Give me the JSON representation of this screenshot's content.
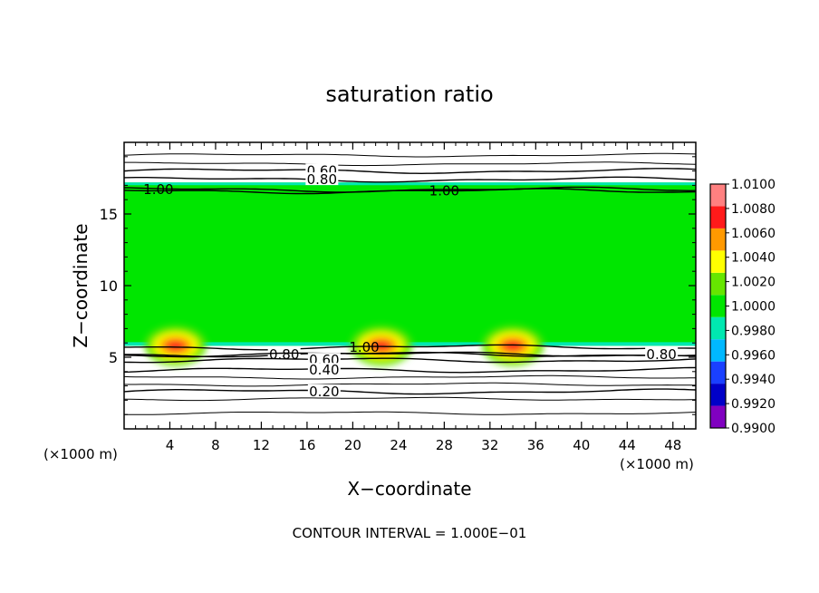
{
  "chart_data": {
    "type": "heatmap",
    "title": "saturation ratio",
    "xlabel": "X−coordinate",
    "ylabel": "Z−coordinate",
    "x_unit_left": "(×1000 m)",
    "x_unit_right": "(×1000 m)",
    "xlim": [
      0,
      50
    ],
    "ylim": [
      0,
      20
    ],
    "x_ticks": [
      "4",
      "8",
      "12",
      "16",
      "20",
      "24",
      "28",
      "32",
      "36",
      "40",
      "44",
      "48"
    ],
    "x_tick_values": [
      4,
      8,
      12,
      16,
      20,
      24,
      28,
      32,
      36,
      40,
      44,
      48
    ],
    "y_ticks": [
      "5",
      "10",
      "15"
    ],
    "y_tick_values": [
      5,
      10,
      15
    ],
    "footer": "CONTOUR INTERVAL = 1.000E−01",
    "colorbar": {
      "levels": [
        "0.9900",
        "0.9920",
        "0.9940",
        "0.9960",
        "0.9980",
        "1.0000",
        "1.0020",
        "1.0040",
        "1.0060",
        "1.0080",
        "1.0100"
      ],
      "colors": [
        "#8000c0",
        "#0000c8",
        "#1a40ff",
        "#00b8ff",
        "#00e8b0",
        "#00e600",
        "#66e600",
        "#ffff00",
        "#ff9900",
        "#ff1a1a",
        "#ff8080"
      ]
    },
    "field": {
      "zmin": 5.8,
      "zmax": 17.2,
      "background_value": 1.0005,
      "maxima_x_km": [
        4.5,
        22.5,
        34
      ],
      "maxima_value": 1.008
    },
    "contours": [
      {
        "label": "0.60",
        "z_km": 18.0,
        "label_x_km": 17.3
      },
      {
        "label": "0.80",
        "z_km": 17.4,
        "label_x_km": 17.3
      },
      {
        "label": "1.00",
        "z_km": 16.7,
        "label_x_km": 3.0
      },
      {
        "label": "1.00",
        "z_km": 16.6,
        "label_x_km": 28.0
      },
      {
        "label": "1.00",
        "z_km": 5.7,
        "label_x_km": 21.0
      },
      {
        "label": "0.80",
        "z_km": 5.2,
        "label_x_km": 14.0
      },
      {
        "label": "0.80",
        "z_km": 5.2,
        "label_x_km": 47.0
      },
      {
        "label": "0.60",
        "z_km": 4.8,
        "label_x_km": 17.5
      },
      {
        "label": "0.40",
        "z_km": 4.1,
        "label_x_km": 17.5
      },
      {
        "label": "0.20",
        "z_km": 2.6,
        "label_x_km": 17.5
      }
    ]
  }
}
